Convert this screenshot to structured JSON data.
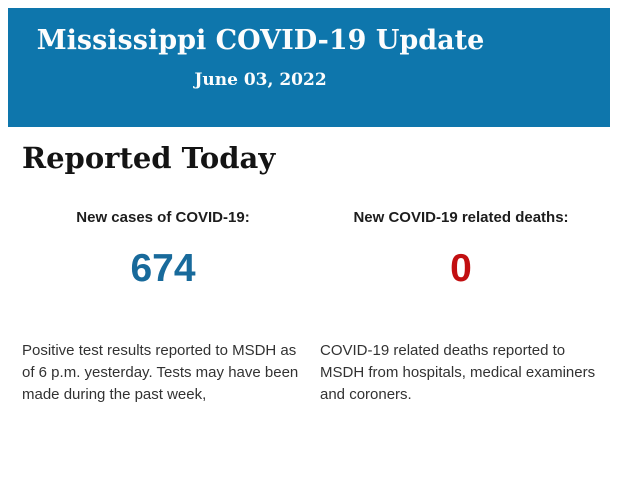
{
  "header": {
    "title": "Mississippi COVID-19 Update",
    "date": "June 03, 2022"
  },
  "report": {
    "section_title": "Reported Today",
    "stats": [
      {
        "label": "New cases of COVID-19:",
        "value": "674",
        "value_color": "#186a9b",
        "description": "Positive test results reported to MSDH as of 6 p.m. yesterday. Tests may have been made during the past week,"
      },
      {
        "label": "New COVID-19 related deaths:",
        "value": "0",
        "value_color": "#c20f11",
        "description": "COVID-19 related deaths reported to MSDH from hospitals, medical examiners and coroners."
      }
    ]
  },
  "colors": {
    "banner_background": "#0e76ac",
    "banner_text": "#fcfdfd",
    "heading_text": "#141414",
    "label_text": "#1d1d1d",
    "body_text": "#323232",
    "page_background": "#ffffff"
  }
}
